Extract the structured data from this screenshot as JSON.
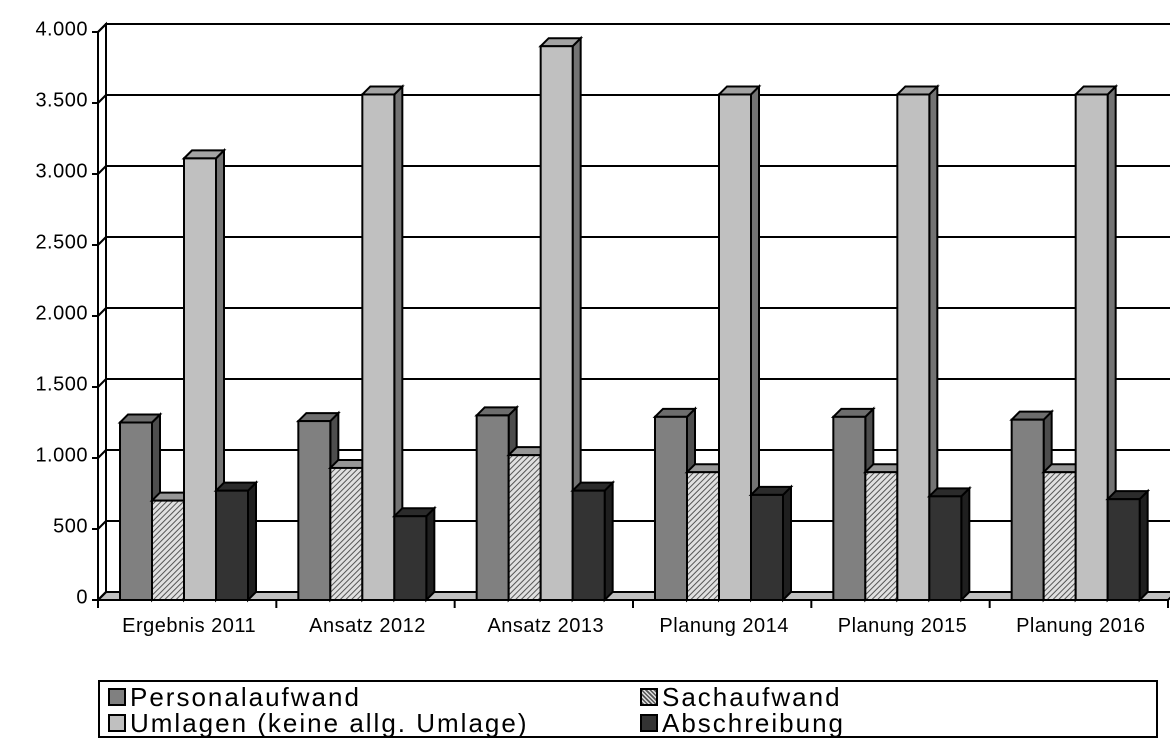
{
  "chart_data": {
    "type": "bar3d",
    "categories": [
      "Ergebnis 2011",
      "Ansatz 2012",
      "Ansatz 2013",
      "Planung 2014",
      "Planung 2015",
      "Planung 2016"
    ],
    "series": [
      {
        "name": "Personalaufwand",
        "color": "#808080",
        "values": [
          1250,
          1260,
          1300,
          1290,
          1290,
          1270
        ]
      },
      {
        "name": "Sachaufwand",
        "color": "#b0b0b0",
        "pattern": "hatch",
        "values": [
          700,
          930,
          1020,
          900,
          900,
          900
        ]
      },
      {
        "name": "Umlagen (keine allg. Umlage)",
        "color": "#c0c0c0",
        "values": [
          3110,
          3560,
          3900,
          3560,
          3560,
          3560
        ]
      },
      {
        "name": "Abschreibung",
        "color": "#333333",
        "values": [
          770,
          590,
          770,
          740,
          730,
          710
        ]
      }
    ],
    "ylim": [
      0,
      4000
    ],
    "yticks": [
      0,
      500,
      {
        "value": 1000,
        "label": "1.000"
      },
      {
        "value": 1500,
        "label": "1.500"
      },
      {
        "value": 2000,
        "label": "2.000"
      },
      {
        "value": 2500,
        "label": "2.500"
      },
      {
        "value": 3000,
        "label": "3.000"
      },
      {
        "value": 3500,
        "label": "3.500"
      },
      {
        "value": 4000,
        "label": "4.000"
      }
    ],
    "grid": true
  }
}
